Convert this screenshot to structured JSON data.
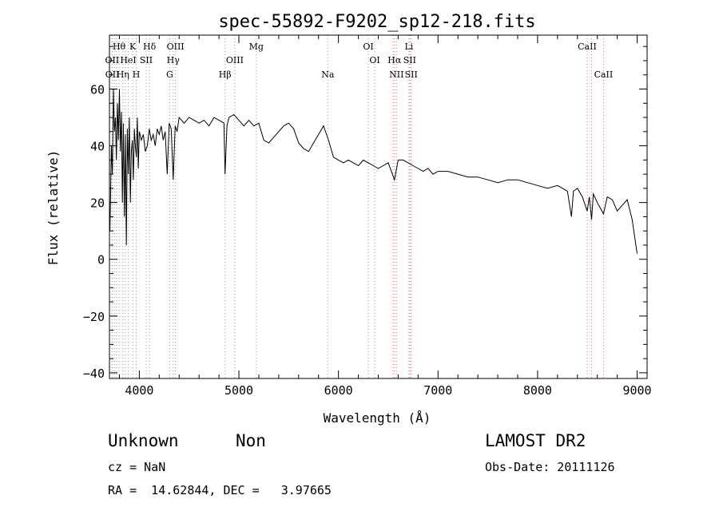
{
  "chart_data": {
    "type": "line",
    "title": "spec-55892-F9202_sp12-218.fits",
    "xlabel": "Wavelength (Å)",
    "ylabel": "Flux (relative)",
    "xlim": [
      3700,
      9100
    ],
    "ylim": [
      -42,
      79
    ],
    "x_ticks": [
      4000,
      5000,
      6000,
      7000,
      8000,
      9000
    ],
    "y_ticks": [
      -40,
      -20,
      0,
      20,
      40,
      60
    ],
    "x_tick_labels": [
      "4000",
      "5000",
      "6000",
      "7000",
      "8000",
      "9000"
    ],
    "y_tick_labels": [
      "−40",
      "−20",
      "0",
      "20",
      "40",
      "60"
    ],
    "grid": false,
    "series": [
      {
        "color": "#000000",
        "x": [
          3705,
          3720,
          3730,
          3740,
          3750,
          3760,
          3770,
          3780,
          3790,
          3800,
          3810,
          3820,
          3830,
          3840,
          3850,
          3860,
          3870,
          3880,
          3890,
          3900,
          3910,
          3920,
          3930,
          3940,
          3950,
          3960,
          3970,
          3980,
          3990,
          4000,
          4020,
          4040,
          4060,
          4080,
          4100,
          4120,
          4140,
          4160,
          4180,
          4200,
          4220,
          4240,
          4260,
          4280,
          4300,
          4320,
          4340,
          4360,
          4380,
          4400,
          4450,
          4500,
          4550,
          4600,
          4650,
          4700,
          4750,
          4800,
          4850,
          4861,
          4880,
          4900,
          4950,
          5000,
          5050,
          5100,
          5150,
          5200,
          5250,
          5300,
          5350,
          5400,
          5450,
          5500,
          5550,
          5600,
          5650,
          5700,
          5750,
          5800,
          5850,
          5900,
          5950,
          6000,
          6050,
          6100,
          6150,
          6200,
          6250,
          6300,
          6350,
          6400,
          6450,
          6500,
          6563,
          6600,
          6650,
          6700,
          6750,
          6800,
          6850,
          6900,
          6950,
          7000,
          7100,
          7200,
          7300,
          7400,
          7500,
          7600,
          7700,
          7800,
          7900,
          8000,
          8100,
          8200,
          8300,
          8340,
          8360,
          8400,
          8450,
          8498,
          8520,
          8542,
          8560,
          8600,
          8662,
          8700,
          8750,
          8800,
          8850,
          8900,
          8950,
          9000
        ],
        "y": [
          10,
          40,
          30,
          60,
          45,
          50,
          35,
          55,
          42,
          60,
          38,
          52,
          20,
          48,
          15,
          44,
          5,
          46,
          30,
          50,
          20,
          38,
          42,
          28,
          46,
          40,
          36,
          50,
          32,
          45,
          42,
          44,
          38,
          40,
          46,
          42,
          44,
          40,
          46,
          44,
          47,
          42,
          45,
          30,
          48,
          46,
          28,
          47,
          45,
          50,
          48,
          50,
          49,
          48,
          49,
          47,
          50,
          49,
          48,
          30,
          47,
          50,
          51,
          49,
          47,
          49,
          47,
          48,
          42,
          41,
          43,
          45,
          47,
          48,
          46,
          41,
          39,
          38,
          41,
          44,
          47,
          42,
          36,
          35,
          34,
          35,
          34,
          33,
          35,
          34,
          33,
          32,
          33,
          34,
          28,
          35,
          35,
          34,
          33,
          32,
          31,
          32,
          30,
          31,
          31,
          30,
          29,
          29,
          28,
          27,
          28,
          28,
          27,
          26,
          25,
          26,
          24,
          15,
          24,
          25,
          22,
          17,
          22,
          14,
          23,
          20,
          16,
          22,
          21,
          17,
          19,
          21,
          14,
          2
        ]
      }
    ],
    "spectral_lines": [
      {
        "label": "Hθ",
        "x": 3797,
        "row": 1,
        "color": "#999999"
      },
      {
        "label": "K",
        "x": 3934,
        "row": 1,
        "color": "#999999"
      },
      {
        "label": "Hδ",
        "x": 4102,
        "row": 1,
        "color": "#999999"
      },
      {
        "label": "OIII",
        "x": 4363,
        "row": 1,
        "color": "#999999"
      },
      {
        "label": "Mg",
        "x": 5175,
        "row": 1,
        "color": "#999999"
      },
      {
        "label": "OI",
        "x": 6300,
        "row": 1,
        "color": "#999999"
      },
      {
        "label": "Li",
        "x": 6708,
        "row": 1,
        "color": "#999999"
      },
      {
        "label": "CaII",
        "x": 8498,
        "row": 1,
        "color": "#ff6666"
      },
      {
        "label": "OII",
        "x": 3727,
        "row": 2,
        "color": "#999999"
      },
      {
        "label": "HeI",
        "x": 3889,
        "row": 2,
        "color": "#999999"
      },
      {
        "label": "SII",
        "x": 4069,
        "row": 2,
        "color": "#999999"
      },
      {
        "label": "Hγ",
        "x": 4340,
        "row": 2,
        "color": "#999999"
      },
      {
        "label": "OIII",
        "x": 4959,
        "row": 2,
        "color": "#999999"
      },
      {
        "label": "OI",
        "x": 6364,
        "row": 2,
        "color": "#999999"
      },
      {
        "label": "Hα",
        "x": 6563,
        "row": 2,
        "color": "#ff6666"
      },
      {
        "label": "SII",
        "x": 6716,
        "row": 2,
        "color": "#ff6666"
      },
      {
        "label": "OII",
        "x": 3729,
        "row": 3,
        "color": "#999999"
      },
      {
        "label": "Hη",
        "x": 3835,
        "row": 3,
        "color": "#999999"
      },
      {
        "label": "H",
        "x": 3969,
        "row": 3,
        "color": "#999999"
      },
      {
        "label": "G",
        "x": 4305,
        "row": 3,
        "color": "#999999"
      },
      {
        "label": "Hβ",
        "x": 4861,
        "row": 3,
        "color": "#999999"
      },
      {
        "label": "Na",
        "x": 5893,
        "row": 3,
        "color": "#999999"
      },
      {
        "label": "NII",
        "x": 6583,
        "row": 3,
        "color": "#ff6666"
      },
      {
        "label": "SII",
        "x": 6731,
        "row": 3,
        "color": "#ff6666"
      },
      {
        "label": "CaII",
        "x": 8662,
        "row": 3,
        "color": "#ff6666"
      }
    ],
    "extra_lines": [
      {
        "x": 3750,
        "color": "#999999"
      },
      {
        "x": 3771,
        "color": "#999999"
      },
      {
        "x": 3860,
        "color": "#999999"
      },
      {
        "x": 6548,
        "color": "#ff6666"
      },
      {
        "x": 8542,
        "color": "#ff6666"
      }
    ]
  },
  "info": {
    "class": "Unknown",
    "subclass": "Non",
    "survey": "LAMOST DR2",
    "cz": "cz = NaN",
    "obs_date": "Obs-Date: 20111126",
    "coords": "RA =  14.62844, DEC =   3.97665"
  }
}
